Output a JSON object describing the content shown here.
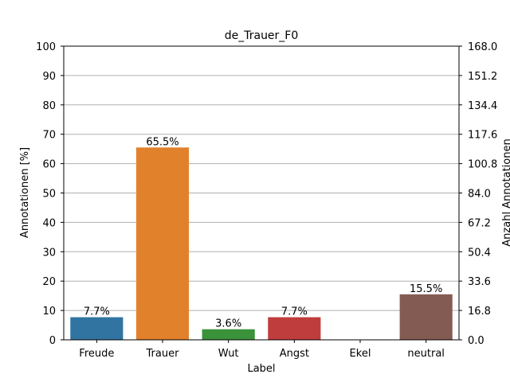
{
  "chart_data": {
    "type": "bar",
    "title": "de_Trauer_F0",
    "xlabel": "Label",
    "ylabel": "Annotationen [%]",
    "ylabel_right": "Anzahl Annotationen",
    "categories": [
      "Freude",
      "Trauer",
      "Wut",
      "Angst",
      "Ekel",
      "neutral"
    ],
    "values": [
      7.7,
      65.5,
      3.6,
      7.7,
      0,
      15.5
    ],
    "value_labels": [
      "7.7%",
      "65.5%",
      "3.6%",
      "7.7%",
      "",
      "15.5%"
    ],
    "colors": [
      "#3274a1",
      "#e1812c",
      "#3a923a",
      "#c03d3e",
      "#9372b2",
      "#845b53"
    ],
    "ylim": [
      0,
      100
    ],
    "yticks": [
      "0",
      "10",
      "20",
      "30",
      "40",
      "50",
      "60",
      "70",
      "80",
      "90",
      "100"
    ],
    "ylim_right": [
      0,
      168
    ],
    "yticks_right": [
      "0.0",
      "16.8",
      "33.6",
      "50.4",
      "67.2",
      "84.0",
      "100.8",
      "117.6",
      "134.4",
      "151.2",
      "168.0"
    ],
    "grid": "horizontal",
    "grid_color": "#b0b0b0"
  }
}
